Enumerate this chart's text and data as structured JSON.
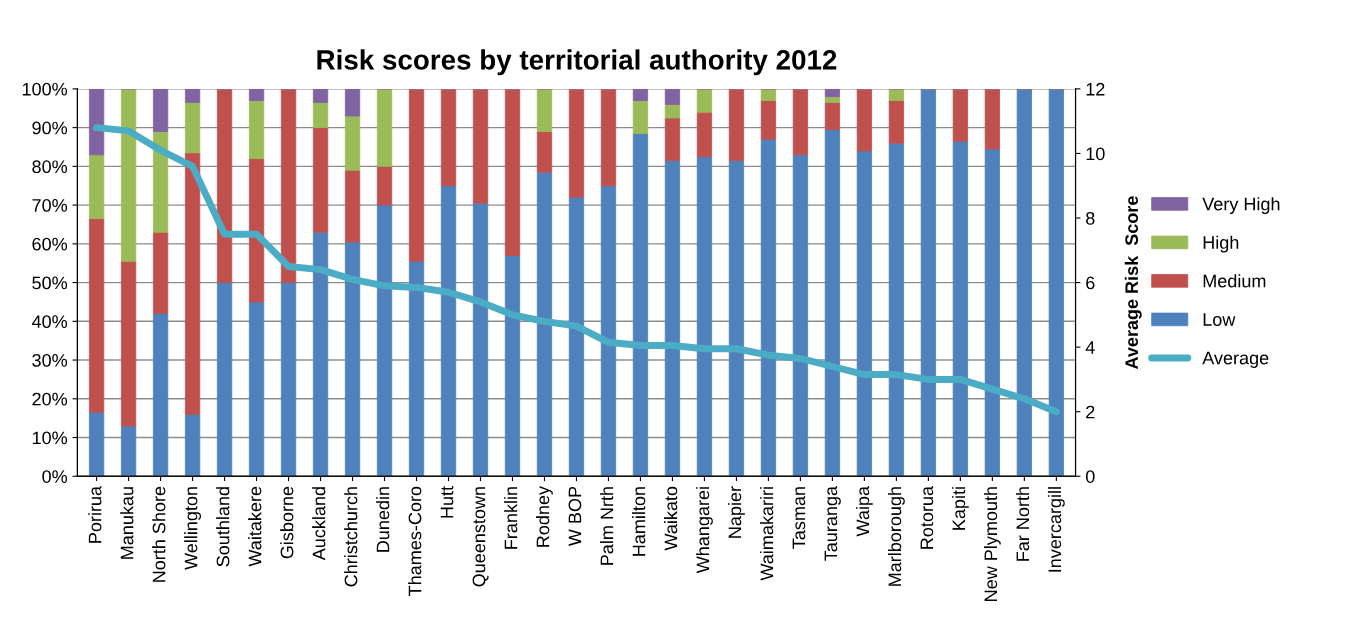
{
  "chart_data": {
    "type": "bar",
    "stacked": true,
    "title": "Risk scores by territorial authority 2012",
    "y2label": "Average Risk  Score",
    "categories": [
      "Porirua",
      "Manukau",
      "North Shore",
      "Wellington",
      "Southland",
      "Waitakere",
      "Gisborne",
      "Auckland",
      "Christchurch",
      "Dunedin",
      "Thames-Coro",
      "Hutt",
      "Queenstown",
      "Franklin",
      "Rodney",
      "W BOP",
      "Palm Nrth",
      "Hamilton",
      "Waikato",
      "Whangarei",
      "Napier",
      "Waimakariri",
      "Tasman",
      "Tauranga",
      "Waipa",
      "Marlborough",
      "Rotorua",
      "Kapiti",
      "New Plymouth",
      "Far North",
      "Invercargill"
    ],
    "series": [
      {
        "name": "Low",
        "color": "#4f81bd",
        "values": [
          16.5,
          13,
          42,
          16,
          50,
          45,
          50,
          63,
          60.5,
          70,
          55.5,
          75,
          70.5,
          57,
          78.5,
          72,
          75,
          88.5,
          81.5,
          82.5,
          81.5,
          87,
          83,
          89.5,
          84,
          86,
          100,
          86.5,
          84.5,
          100,
          100
        ]
      },
      {
        "name": "Medium",
        "color": "#c0504d",
        "values": [
          50,
          42.5,
          21,
          67.5,
          50,
          37,
          50,
          27,
          18.5,
          10,
          44.5,
          25,
          29.5,
          43,
          10.5,
          28,
          25,
          0,
          11,
          11.5,
          18.5,
          10,
          17,
          7,
          16,
          11,
          0,
          13.5,
          15.5,
          0,
          0
        ]
      },
      {
        "name": "High",
        "color": "#9bbb59",
        "values": [
          16.5,
          44.5,
          26,
          13,
          0,
          15,
          0,
          6.5,
          14,
          20,
          0,
          0,
          0,
          0,
          11,
          0,
          0,
          8.5,
          3.5,
          6,
          0,
          3,
          0,
          1.5,
          0,
          3,
          0,
          0,
          0,
          0,
          0
        ]
      },
      {
        "name": "Very High",
        "color": "#8064a2",
        "values": [
          17,
          0,
          11,
          3.5,
          0,
          3,
          0,
          3.5,
          7,
          0,
          0,
          0,
          0,
          0,
          0,
          0,
          0,
          3,
          4,
          0,
          0,
          0,
          0,
          2,
          0,
          0,
          0,
          0,
          0,
          0,
          0
        ]
      },
      {
        "name": "Average",
        "type": "line",
        "axis": "y2",
        "color": "#4bacc6",
        "values": [
          10.8,
          10.7,
          10.1,
          9.6,
          7.5,
          7.5,
          6.5,
          6.4,
          6.1,
          5.9,
          5.85,
          5.7,
          5.4,
          5.0,
          4.8,
          4.65,
          4.15,
          4.05,
          4.05,
          3.95,
          3.95,
          3.75,
          3.65,
          3.4,
          3.15,
          3.15,
          3.0,
          3.0,
          2.7,
          2.4,
          2.0
        ]
      }
    ],
    "ylim": [
      0,
      100
    ],
    "yticks": [
      {
        "value": 0,
        "label": "0%"
      },
      {
        "value": 10,
        "label": "10%"
      },
      {
        "value": 20,
        "label": "20%"
      },
      {
        "value": 30,
        "label": "30%"
      },
      {
        "value": 40,
        "label": "40%"
      },
      {
        "value": 50,
        "label": "50%"
      },
      {
        "value": 60,
        "label": "60%"
      },
      {
        "value": 70,
        "label": "70%"
      },
      {
        "value": 80,
        "label": "80%"
      },
      {
        "value": 90,
        "label": "90%"
      },
      {
        "value": 100,
        "label": "100%"
      }
    ],
    "y2lim": [
      0,
      12
    ],
    "y2ticks": [
      0,
      2,
      4,
      6,
      8,
      10,
      12
    ],
    "grid": "y",
    "legend": "right"
  }
}
